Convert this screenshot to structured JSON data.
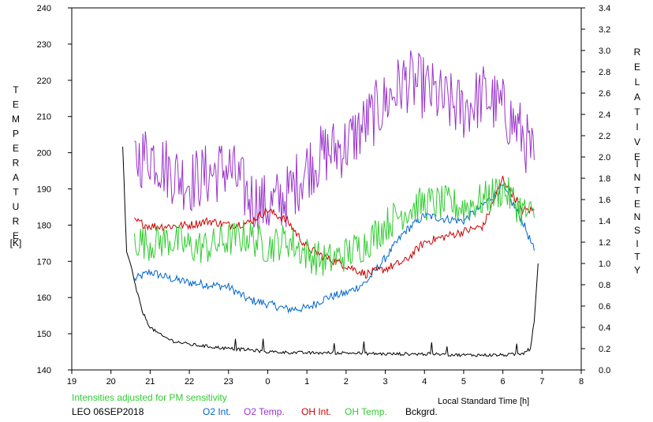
{
  "chart_data": {
    "type": "line",
    "xlabel": "Local Standard Time [h]",
    "x_ticks": [
      "19",
      "20",
      "21",
      "22",
      "23",
      "0",
      "1",
      "2",
      "3",
      "4",
      "5",
      "6",
      "7",
      "8"
    ],
    "x_range": [
      19,
      32
    ],
    "y_left": {
      "label_letters": [
        "T",
        "E",
        "M",
        "P",
        "E",
        "R",
        "A",
        "T",
        "U",
        "R",
        "E"
      ],
      "unit": "[K]",
      "range": [
        140,
        240
      ],
      "ticks": [
        "140",
        "150",
        "160",
        "170",
        "180",
        "190",
        "200",
        "210",
        "220",
        "230",
        "240"
      ]
    },
    "y_right": {
      "label_letters_1": [
        "R",
        "E",
        "L",
        "A",
        "T",
        "I",
        "V",
        "E"
      ],
      "label_letters_2": [
        "I",
        "N",
        "T",
        "E",
        "N",
        "S",
        "I",
        "T",
        "Y"
      ],
      "range": [
        0.0,
        3.4
      ],
      "ticks": [
        "0.0",
        "0.2",
        "0.4",
        "0.6",
        "0.8",
        "1.0",
        "1.2",
        "1.4",
        "1.6",
        "1.8",
        "2.0",
        "2.2",
        "2.4",
        "2.6",
        "2.8",
        "3.0",
        "3.2",
        "3.4"
      ]
    },
    "note": "Intensities adjusted for PM sensitivity",
    "station": "LEO 06SEP2018",
    "legend": [
      {
        "name": "O2 Int.",
        "color": "#0066cc"
      },
      {
        "name": "O2 Temp.",
        "color": "#9933cc"
      },
      {
        "name": "OH Int.",
        "color": "#cc0000"
      },
      {
        "name": "OH Temp.",
        "color": "#33cc33"
      },
      {
        "name": "Bckgrd.",
        "color": "#000000"
      }
    ],
    "series": [
      {
        "name": "O2 Int.",
        "axis": "right",
        "color": "#0066cc",
        "x": [
          20.6,
          21.0,
          21.5,
          22.0,
          22.5,
          23.0,
          23.5,
          24.0,
          24.5,
          25.0,
          25.5,
          26.0,
          26.5,
          27.0,
          27.5,
          28.0,
          28.5,
          29.0,
          29.5,
          30.0,
          30.5,
          30.8
        ],
        "y": [
          0.85,
          0.92,
          0.86,
          0.82,
          0.8,
          0.78,
          0.66,
          0.62,
          0.57,
          0.58,
          0.68,
          0.72,
          0.82,
          1.05,
          1.3,
          1.45,
          1.42,
          1.4,
          1.55,
          1.72,
          1.4,
          1.12
        ]
      },
      {
        "name": "O2 Temp.",
        "axis": "left",
        "color": "#9933cc",
        "x": [
          20.6,
          21.0,
          21.5,
          22.0,
          22.5,
          23.0,
          23.5,
          24.0,
          24.5,
          25.0,
          25.5,
          26.0,
          26.5,
          27.0,
          27.5,
          28.0,
          28.5,
          29.0,
          29.5,
          30.0,
          30.5,
          30.8
        ],
        "y": [
          198,
          200,
          195,
          192,
          194,
          196,
          188,
          185,
          188,
          196,
          200,
          202,
          208,
          214,
          220,
          218,
          214,
          212,
          216,
          212,
          205,
          198
        ]
      },
      {
        "name": "OH Int.",
        "axis": "right",
        "color": "#cc0000",
        "x": [
          20.6,
          21.0,
          21.5,
          22.0,
          22.5,
          23.0,
          23.5,
          24.0,
          24.5,
          25.0,
          25.5,
          26.0,
          26.5,
          27.0,
          27.5,
          28.0,
          28.5,
          29.0,
          29.5,
          30.0,
          30.5,
          30.8
        ],
        "y": [
          1.4,
          1.35,
          1.35,
          1.36,
          1.4,
          1.36,
          1.38,
          1.5,
          1.4,
          1.15,
          1.05,
          0.98,
          0.9,
          0.95,
          1.02,
          1.2,
          1.25,
          1.3,
          1.35,
          1.8,
          1.5,
          1.5
        ]
      },
      {
        "name": "OH Temp.",
        "axis": "left",
        "color": "#33cc33",
        "x": [
          20.6,
          21.0,
          21.5,
          22.0,
          22.5,
          23.0,
          23.5,
          24.0,
          24.5,
          25.0,
          25.5,
          26.0,
          26.5,
          27.0,
          27.5,
          28.0,
          28.5,
          29.0,
          29.5,
          30.0,
          30.5,
          30.8
        ],
        "y": [
          176,
          175,
          176,
          174,
          174,
          176,
          177,
          174,
          176,
          172,
          170,
          172,
          175,
          180,
          184,
          186,
          186,
          185,
          187,
          190,
          184,
          182
        ]
      },
      {
        "name": "Bckgrd.",
        "axis": "right",
        "color": "#000000",
        "x": [
          20.3,
          20.4,
          20.5,
          20.6,
          20.8,
          21.0,
          21.3,
          21.6,
          22.0,
          22.5,
          23.0,
          23.5,
          24.0,
          25.0,
          26.0,
          27.0,
          28.0,
          29.0,
          30.0,
          30.5,
          30.7,
          30.8,
          30.9
        ],
        "y": [
          2.1,
          1.1,
          1.0,
          0.82,
          0.55,
          0.4,
          0.32,
          0.27,
          0.24,
          0.22,
          0.2,
          0.19,
          0.17,
          0.16,
          0.16,
          0.15,
          0.15,
          0.14,
          0.14,
          0.15,
          0.2,
          0.45,
          1.0
        ]
      }
    ]
  }
}
